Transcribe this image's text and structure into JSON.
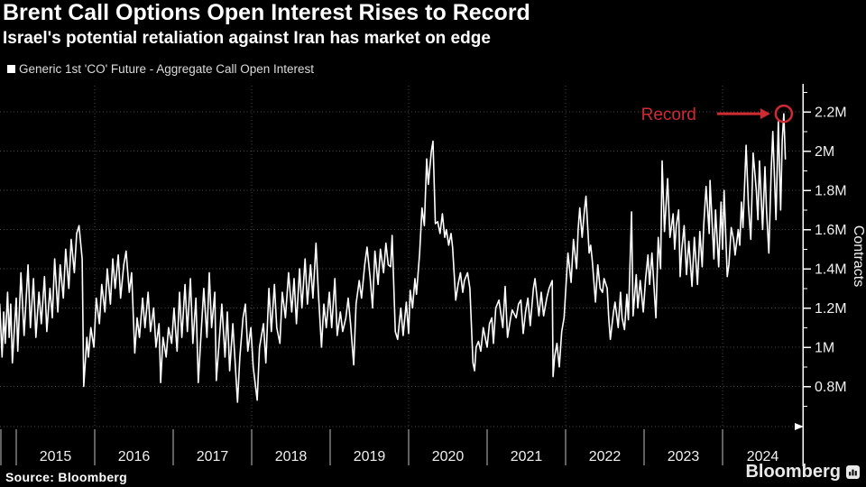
{
  "header": {
    "title": "Brent Call Options Open Interest Rises to Record",
    "subtitle": "Israel's potential retaliation against Iran has market on edge",
    "legend": {
      "swatch_color": "#ffffff",
      "label": "Generic 1st 'CO' Future - Aggregate Call Open Interest"
    }
  },
  "footer": {
    "source": "Source: Bloomberg",
    "brand": "Bloomberg",
    "brand_icon": "bloomberg-terminal-icon"
  },
  "colors": {
    "background": "#000000",
    "line": "#ffffff",
    "grid": "#4b4b4b",
    "axis": "#ffffff",
    "axis_text": "#f0f0f0",
    "band_separator": "#c0c0c0",
    "annotation_red": "#d02a32"
  },
  "chart_data": {
    "type": "line",
    "title": "Brent Call Options Open Interest Rises to Record",
    "series_name": "Generic 1st 'CO' Future - Aggregate Call Open Interest",
    "xlabel": "",
    "ylabel": "Contracts",
    "unit": "millions of contracts",
    "xlim": [
      2014.79,
      2024.97
    ],
    "ylim_m": [
      0.6,
      2.33
    ],
    "grid": "dotted",
    "legend_position": "top-left",
    "x_tick_labels": [
      "2015",
      "2016",
      "2017",
      "2018",
      "2019",
      "2020",
      "2021",
      "2022",
      "2023",
      "2024"
    ],
    "x_gridline_years": [
      2016,
      2018,
      2020,
      2022,
      2024
    ],
    "y_ticks": [
      {
        "v": 2.2,
        "label": "2.2M"
      },
      {
        "v": 2.0,
        "label": "2M"
      },
      {
        "v": 1.8,
        "label": "1.8M"
      },
      {
        "v": 1.6,
        "label": "1.6M"
      },
      {
        "v": 1.4,
        "label": "1.4M"
      },
      {
        "v": 1.2,
        "label": "1.2M"
      },
      {
        "v": 1.0,
        "label": "1M"
      },
      {
        "v": 0.8,
        "label": "0.8M"
      }
    ],
    "y_minor_ticks": [
      0.7,
      0.9,
      1.1,
      1.3,
      1.5,
      1.7,
      1.9,
      2.1,
      2.3
    ],
    "annotation": {
      "label": "Record",
      "t": 2024.78,
      "value_m": 2.19,
      "color": "#d02a32"
    },
    "points": [
      [
        2014.79,
        1.22
      ],
      [
        2014.82,
        0.95
      ],
      [
        2014.84,
        1.18
      ],
      [
        2014.86,
        1.02
      ],
      [
        2014.89,
        1.28
      ],
      [
        2014.91,
        1.05
      ],
      [
        2014.93,
        1.22
      ],
      [
        2014.95,
        0.92
      ],
      [
        2014.98,
        1.12
      ],
      [
        2015.0,
        1.25
      ],
      [
        2015.02,
        0.98
      ],
      [
        2015.06,
        1.38
      ],
      [
        2015.1,
        1.06
      ],
      [
        2015.15,
        1.42
      ],
      [
        2015.18,
        1.1
      ],
      [
        2015.22,
        1.35
      ],
      [
        2015.25,
        1.05
      ],
      [
        2015.29,
        1.28
      ],
      [
        2015.32,
        1.12
      ],
      [
        2015.36,
        1.36
      ],
      [
        2015.39,
        1.08
      ],
      [
        2015.43,
        1.3
      ],
      [
        2015.46,
        1.15
      ],
      [
        2015.49,
        1.45
      ],
      [
        2015.53,
        1.18
      ],
      [
        2015.56,
        1.42
      ],
      [
        2015.6,
        1.25
      ],
      [
        2015.63,
        1.5
      ],
      [
        2015.67,
        1.3
      ],
      [
        2015.7,
        1.55
      ],
      [
        2015.74,
        1.38
      ],
      [
        2015.77,
        1.58
      ],
      [
        2015.8,
        1.62
      ],
      [
        2015.84,
        1.45
      ],
      [
        2015.86,
        0.8
      ],
      [
        2015.9,
        1.05
      ],
      [
        2015.92,
        0.95
      ],
      [
        2015.95,
        1.1
      ],
      [
        2015.99,
        1.0
      ],
      [
        2016.02,
        1.25
      ],
      [
        2016.06,
        1.12
      ],
      [
        2016.09,
        1.32
      ],
      [
        2016.13,
        1.18
      ],
      [
        2016.16,
        1.4
      ],
      [
        2016.2,
        1.22
      ],
      [
        2016.23,
        1.45
      ],
      [
        2016.26,
        1.3
      ],
      [
        2016.3,
        1.47
      ],
      [
        2016.33,
        1.25
      ],
      [
        2016.37,
        1.42
      ],
      [
        2016.4,
        1.49
      ],
      [
        2016.44,
        1.28
      ],
      [
        2016.47,
        1.38
      ],
      [
        2016.51,
        0.97
      ],
      [
        2016.54,
        1.15
      ],
      [
        2016.57,
        1.05
      ],
      [
        2016.61,
        1.25
      ],
      [
        2016.64,
        1.1
      ],
      [
        2016.68,
        1.28
      ],
      [
        2016.71,
        1.08
      ],
      [
        2016.75,
        1.2
      ],
      [
        2016.78,
        1.0
      ],
      [
        2016.82,
        1.12
      ],
      [
        2016.84,
        0.82
      ],
      [
        2016.87,
        1.05
      ],
      [
        2016.91,
        0.95
      ],
      [
        2016.94,
        1.1
      ],
      [
        2016.98,
        1.02
      ],
      [
        2017.01,
        1.2
      ],
      [
        2017.05,
        0.98
      ],
      [
        2017.08,
        1.28
      ],
      [
        2017.11,
        1.05
      ],
      [
        2017.15,
        1.32
      ],
      [
        2017.18,
        1.08
      ],
      [
        2017.22,
        1.35
      ],
      [
        2017.25,
        1.02
      ],
      [
        2017.29,
        1.25
      ],
      [
        2017.32,
        0.82
      ],
      [
        2017.36,
        1.1
      ],
      [
        2017.39,
        1.3
      ],
      [
        2017.43,
        1.05
      ],
      [
        2017.46,
        1.38
      ],
      [
        2017.49,
        1.1
      ],
      [
        2017.53,
        1.28
      ],
      [
        2017.55,
        0.83
      ],
      [
        2017.59,
        1.05
      ],
      [
        2017.62,
        1.22
      ],
      [
        2017.66,
        0.95
      ],
      [
        2017.69,
        1.18
      ],
      [
        2017.72,
        0.88
      ],
      [
        2017.76,
        1.12
      ],
      [
        2017.79,
        0.92
      ],
      [
        2017.82,
        0.72
      ],
      [
        2017.85,
        0.95
      ],
      [
        2017.89,
        1.15
      ],
      [
        2017.92,
        1.22
      ],
      [
        2017.95,
        0.98
      ],
      [
        2017.99,
        1.1
      ],
      [
        2018.02,
        0.9
      ],
      [
        2018.07,
        0.73
      ],
      [
        2018.1,
        1.0
      ],
      [
        2018.15,
        1.12
      ],
      [
        2018.18,
        0.92
      ],
      [
        2018.22,
        1.3
      ],
      [
        2018.25,
        1.08
      ],
      [
        2018.29,
        1.32
      ],
      [
        2018.32,
        1.1
      ],
      [
        2018.36,
        1.02
      ],
      [
        2018.39,
        1.28
      ],
      [
        2018.43,
        1.15
      ],
      [
        2018.47,
        1.38
      ],
      [
        2018.51,
        1.18
      ],
      [
        2018.54,
        1.35
      ],
      [
        2018.57,
        1.12
      ],
      [
        2018.61,
        1.4
      ],
      [
        2018.64,
        1.2
      ],
      [
        2018.68,
        1.45
      ],
      [
        2018.71,
        1.22
      ],
      [
        2018.75,
        1.42
      ],
      [
        2018.78,
        1.25
      ],
      [
        2018.82,
        1.53
      ],
      [
        2018.85,
        1.28
      ],
      [
        2018.89,
        1.0
      ],
      [
        2018.92,
        1.22
      ],
      [
        2018.95,
        1.1
      ],
      [
        2018.99,
        1.28
      ],
      [
        2019.02,
        1.1
      ],
      [
        2019.06,
        1.35
      ],
      [
        2019.09,
        1.06
      ],
      [
        2019.13,
        1.18
      ],
      [
        2019.16,
        1.08
      ],
      [
        2019.2,
        1.15
      ],
      [
        2019.23,
        1.25
      ],
      [
        2019.26,
        1.12
      ],
      [
        2019.3,
        0.91
      ],
      [
        2019.33,
        1.22
      ],
      [
        2019.37,
        1.34
      ],
      [
        2019.4,
        1.25
      ],
      [
        2019.44,
        1.42
      ],
      [
        2019.47,
        1.51
      ],
      [
        2019.51,
        1.35
      ],
      [
        2019.54,
        1.2
      ],
      [
        2019.57,
        1.49
      ],
      [
        2019.61,
        1.32
      ],
      [
        2019.64,
        1.5
      ],
      [
        2019.68,
        1.38
      ],
      [
        2019.71,
        1.53
      ],
      [
        2019.74,
        1.42
      ],
      [
        2019.77,
        1.41
      ],
      [
        2019.79,
        1.57
      ],
      [
        2019.83,
        1.08
      ],
      [
        2019.86,
        1.04
      ],
      [
        2019.9,
        1.2
      ],
      [
        2019.93,
        1.06
      ],
      [
        2019.97,
        1.23
      ],
      [
        2020.0,
        1.07
      ],
      [
        2020.02,
        1.29
      ],
      [
        2020.05,
        1.2
      ],
      [
        2020.08,
        1.35
      ],
      [
        2020.1,
        1.27
      ],
      [
        2020.14,
        1.48
      ],
      [
        2020.17,
        1.71
      ],
      [
        2020.2,
        1.62
      ],
      [
        2020.23,
        1.96
      ],
      [
        2020.25,
        1.83
      ],
      [
        2020.29,
        2.0
      ],
      [
        2020.31,
        2.05
      ],
      [
        2020.34,
        1.63
      ],
      [
        2020.37,
        1.64
      ],
      [
        2020.4,
        1.58
      ],
      [
        2020.43,
        1.68
      ],
      [
        2020.46,
        1.56
      ],
      [
        2020.48,
        1.6
      ],
      [
        2020.51,
        1.52
      ],
      [
        2020.54,
        1.58
      ],
      [
        2020.56,
        1.51
      ],
      [
        2020.6,
        1.24
      ],
      [
        2020.63,
        1.32
      ],
      [
        2020.66,
        1.38
      ],
      [
        2020.69,
        1.28
      ],
      [
        2020.71,
        1.34
      ],
      [
        2020.75,
        1.38
      ],
      [
        2020.78,
        1.3
      ],
      [
        2020.82,
        0.92
      ],
      [
        2020.84,
        0.88
      ],
      [
        2020.86,
        1.0
      ],
      [
        2020.89,
        1.03
      ],
      [
        2020.92,
        0.98
      ],
      [
        2020.95,
        1.1
      ],
      [
        2021.0,
        1.0
      ],
      [
        2021.03,
        1.12
      ],
      [
        2021.06,
        1.15
      ],
      [
        2021.08,
        1.02
      ],
      [
        2021.11,
        1.2
      ],
      [
        2021.15,
        1.24
      ],
      [
        2021.2,
        1.1
      ],
      [
        2021.23,
        1.31
      ],
      [
        2021.26,
        1.05
      ],
      [
        2021.3,
        1.15
      ],
      [
        2021.32,
        1.19
      ],
      [
        2021.37,
        1.15
      ],
      [
        2021.4,
        1.22
      ],
      [
        2021.43,
        1.24
      ],
      [
        2021.46,
        1.07
      ],
      [
        2021.49,
        1.18
      ],
      [
        2021.52,
        1.25
      ],
      [
        2021.55,
        1.11
      ],
      [
        2021.59,
        1.3
      ],
      [
        2021.61,
        1.35
      ],
      [
        2021.66,
        1.16
      ],
      [
        2021.69,
        1.28
      ],
      [
        2021.72,
        1.16
      ],
      [
        2021.76,
        1.25
      ],
      [
        2021.79,
        1.3
      ],
      [
        2021.83,
        1.34
      ],
      [
        2021.84,
        0.85
      ],
      [
        2021.86,
        0.95
      ],
      [
        2021.89,
        1.02
      ],
      [
        2021.92,
        0.9
      ],
      [
        2021.95,
        1.08
      ],
      [
        2021.98,
        1.15
      ],
      [
        2022.01,
        1.35
      ],
      [
        2022.03,
        1.48
      ],
      [
        2022.07,
        1.33
      ],
      [
        2022.1,
        1.55
      ],
      [
        2022.14,
        1.4
      ],
      [
        2022.16,
        1.6
      ],
      [
        2022.18,
        1.71
      ],
      [
        2022.21,
        1.56
      ],
      [
        2022.24,
        1.7
      ],
      [
        2022.26,
        1.77
      ],
      [
        2022.3,
        1.48
      ],
      [
        2022.32,
        1.52
      ],
      [
        2022.34,
        1.44
      ],
      [
        2022.38,
        1.23
      ],
      [
        2022.41,
        1.42
      ],
      [
        2022.44,
        1.3
      ],
      [
        2022.47,
        1.28
      ],
      [
        2022.49,
        1.35
      ],
      [
        2022.53,
        1.3
      ],
      [
        2022.55,
        1.15
      ],
      [
        2022.57,
        1.04
      ],
      [
        2022.61,
        1.18
      ],
      [
        2022.63,
        1.23
      ],
      [
        2022.67,
        1.1
      ],
      [
        2022.7,
        1.28
      ],
      [
        2022.72,
        1.15
      ],
      [
        2022.75,
        1.09
      ],
      [
        2022.78,
        1.27
      ],
      [
        2022.8,
        1.14
      ],
      [
        2022.84,
        1.69
      ],
      [
        2022.86,
        1.16
      ],
      [
        2022.9,
        1.37
      ],
      [
        2022.92,
        1.2
      ],
      [
        2022.95,
        1.34
      ],
      [
        2022.99,
        1.18
      ],
      [
        2023.02,
        1.35
      ],
      [
        2023.05,
        1.47
      ],
      [
        2023.07,
        1.32
      ],
      [
        2023.1,
        1.48
      ],
      [
        2023.15,
        1.15
      ],
      [
        2023.18,
        1.56
      ],
      [
        2023.21,
        1.4
      ],
      [
        2023.23,
        1.95
      ],
      [
        2023.26,
        1.59
      ],
      [
        2023.3,
        1.86
      ],
      [
        2023.33,
        1.56
      ],
      [
        2023.37,
        1.68
      ],
      [
        2023.39,
        1.5
      ],
      [
        2023.41,
        1.62
      ],
      [
        2023.44,
        1.7
      ],
      [
        2023.46,
        1.36
      ],
      [
        2023.48,
        1.5
      ],
      [
        2023.51,
        1.62
      ],
      [
        2023.54,
        1.37
      ],
      [
        2023.57,
        1.54
      ],
      [
        2023.61,
        1.31
      ],
      [
        2023.64,
        1.56
      ],
      [
        2023.68,
        1.32
      ],
      [
        2023.71,
        1.59
      ],
      [
        2023.74,
        1.41
      ],
      [
        2023.76,
        1.62
      ],
      [
        2023.79,
        1.82
      ],
      [
        2023.83,
        1.58
      ],
      [
        2023.84,
        1.85
      ],
      [
        2023.89,
        1.45
      ],
      [
        2023.91,
        1.7
      ],
      [
        2023.95,
        1.41
      ],
      [
        2023.98,
        1.74
      ],
      [
        2024.0,
        1.5
      ],
      [
        2024.02,
        1.8
      ],
      [
        2024.06,
        1.36
      ],
      [
        2024.08,
        1.42
      ],
      [
        2024.11,
        1.61
      ],
      [
        2024.14,
        1.55
      ],
      [
        2024.16,
        1.47
      ],
      [
        2024.2,
        1.6
      ],
      [
        2024.22,
        1.52
      ],
      [
        2024.24,
        1.74
      ],
      [
        2024.26,
        1.61
      ],
      [
        2024.3,
        2.03
      ],
      [
        2024.33,
        1.72
      ],
      [
        2024.36,
        1.55
      ],
      [
        2024.39,
        1.99
      ],
      [
        2024.43,
        1.8
      ],
      [
        2024.45,
        1.65
      ],
      [
        2024.47,
        1.95
      ],
      [
        2024.51,
        1.6
      ],
      [
        2024.54,
        1.92
      ],
      [
        2024.56,
        1.7
      ],
      [
        2024.59,
        1.48
      ],
      [
        2024.62,
        1.9
      ],
      [
        2024.64,
        2.1
      ],
      [
        2024.68,
        1.65
      ],
      [
        2024.71,
        2.15
      ],
      [
        2024.74,
        1.7
      ],
      [
        2024.76,
        2.05
      ],
      [
        2024.78,
        2.19
      ],
      [
        2024.8,
        1.96
      ]
    ]
  }
}
